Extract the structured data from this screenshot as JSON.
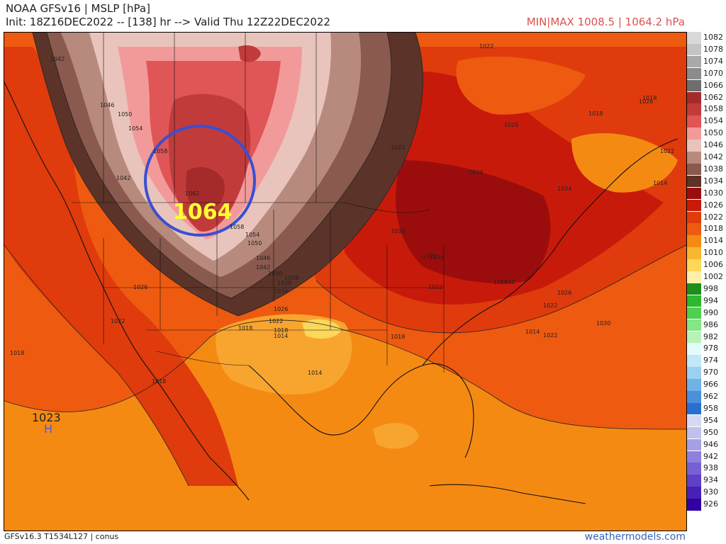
{
  "header": {
    "title_line1": "NOAA GFSv16 | MSLP [hPa]",
    "title_line2": "Init: 18Z16DEC2022 -- [138] hr --> Valid Thu 12Z22DEC2022",
    "minmax": "MIN|MAX 1008.5 | 1064.2 hPa"
  },
  "map": {
    "highlight_value": "1064",
    "high_center_value": "1023",
    "high_center_letter": "H",
    "colors": {
      "circle": "#3a4fd0",
      "high_label": "#ffff33",
      "ocean_base": "#e8520f"
    },
    "isobar_labels": [
      "1042",
      "1046",
      "1050",
      "1054",
      "1058",
      "1062",
      "1042",
      "1058",
      "1054",
      "1050",
      "1046",
      "1042",
      "1038",
      "1034",
      "1030",
      "1026",
      "1022",
      "1018",
      "1014",
      "1038",
      "1034",
      "1030",
      "1026",
      "1022",
      "1018",
      "1026",
      "1022",
      "1018",
      "1014",
      "1018",
      "1018",
      "1014",
      "1022",
      "1026",
      "1030",
      "1034",
      "1022",
      "1018",
      "1026",
      "1022",
      "1014",
      "1018",
      "1026",
      "1022",
      "1018",
      "1030",
      "1026",
      "1022"
    ]
  },
  "colorbar": [
    {
      "label": "1082",
      "color": "#d9d9d9"
    },
    {
      "label": "1078",
      "color": "#c4c4c4"
    },
    {
      "label": "1074",
      "color": "#a9a9a9"
    },
    {
      "label": "1070",
      "color": "#8c8c8c"
    },
    {
      "label": "1066",
      "color": "#6e6e6e"
    },
    {
      "label": "1062",
      "color": "#a52a2a"
    },
    {
      "label": "1058",
      "color": "#c23b3b"
    },
    {
      "label": "1054",
      "color": "#e05555"
    },
    {
      "label": "1050",
      "color": "#f29a9a"
    },
    {
      "label": "1046",
      "color": "#e8c4bc"
    },
    {
      "label": "1042",
      "color": "#b88a7e"
    },
    {
      "label": "1038",
      "color": "#8a5a4e"
    },
    {
      "label": "1034",
      "color": "#5c3328"
    },
    {
      "label": "1030",
      "color": "#9b0d0d"
    },
    {
      "label": "1026",
      "color": "#c81a0a"
    },
    {
      "label": "1022",
      "color": "#e03b0c"
    },
    {
      "label": "1018",
      "color": "#ee5a10"
    },
    {
      "label": "1014",
      "color": "#f58a13"
    },
    {
      "label": "1010",
      "color": "#f8b730"
    },
    {
      "label": "1006",
      "color": "#fbd75a"
    },
    {
      "label": "1002",
      "color": "#fdf0a8"
    },
    {
      "label": "998",
      "color": "#1a8f1a"
    },
    {
      "label": "994",
      "color": "#2eb82e"
    },
    {
      "label": "990",
      "color": "#4fd14f"
    },
    {
      "label": "986",
      "color": "#84e684"
    },
    {
      "label": "982",
      "color": "#b7f2b7"
    },
    {
      "label": "978",
      "color": "#e3fbfb"
    },
    {
      "label": "974",
      "color": "#c2e7f7"
    },
    {
      "label": "970",
      "color": "#9ad0f0"
    },
    {
      "label": "966",
      "color": "#6fb2e6"
    },
    {
      "label": "962",
      "color": "#4a90dc"
    },
    {
      "label": "958",
      "color": "#2a6fd0"
    },
    {
      "label": "954",
      "color": "#d8d8f0"
    },
    {
      "label": "950",
      "color": "#c0c0ec"
    },
    {
      "label": "946",
      "color": "#a7a0e6"
    },
    {
      "label": "942",
      "color": "#8f80de"
    },
    {
      "label": "938",
      "color": "#7760d3"
    },
    {
      "label": "934",
      "color": "#5f40c6"
    },
    {
      "label": "930",
      "color": "#4720b5"
    },
    {
      "label": "926",
      "color": "#3000a3"
    }
  ],
  "footer": {
    "left": "GFSv16.3 T1534L127 | conus",
    "right": "weathermodels.com"
  }
}
